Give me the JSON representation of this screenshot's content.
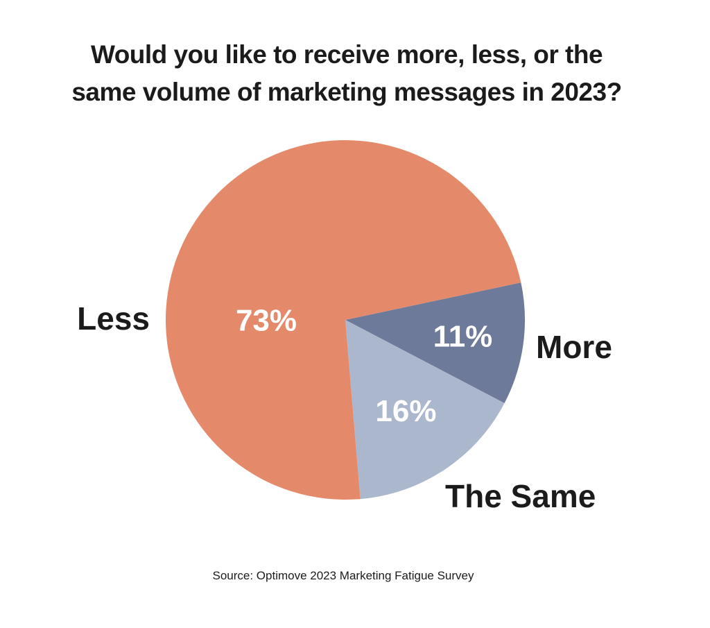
{
  "chart_data": {
    "type": "pie",
    "title_lines": [
      "Would you like to receive more, less, or the",
      "same volume of marketing messages in 2023?"
    ],
    "slices": [
      {
        "label": "More",
        "value": 11,
        "value_label": "11%",
        "color": "#6e7a9a"
      },
      {
        "label": "The Same",
        "value": 16,
        "value_label": "16%",
        "color": "#abb7cc"
      },
      {
        "label": "Less",
        "value": 73,
        "value_label": "73%",
        "color": "#e48a6b"
      }
    ],
    "source": "Source: Optimove 2023 Marketing Fatigue Survey"
  }
}
